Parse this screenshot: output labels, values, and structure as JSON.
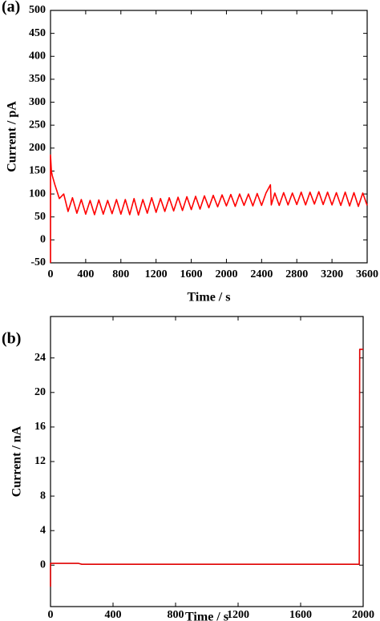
{
  "chart_data": [
    {
      "type": "line",
      "panel_label": "(a)",
      "xlabel": "Time / s",
      "ylabel": "Current / pA",
      "xlim": [
        0,
        3600
      ],
      "xticks": [
        0,
        400,
        800,
        1200,
        1600,
        2000,
        2400,
        2800,
        3200,
        3600
      ],
      "ylim": [
        -50,
        500
      ],
      "yticks": [
        -50,
        0,
        50,
        100,
        150,
        200,
        250,
        300,
        350,
        400,
        450,
        500
      ],
      "series": [
        {
          "color": "#ff0000",
          "x": [
            0,
            0,
            10,
            20,
            50,
            100,
            150,
            200,
            250,
            300,
            350,
            400,
            450,
            500,
            550,
            600,
            650,
            700,
            750,
            800,
            850,
            900,
            950,
            1000,
            1050,
            1100,
            1150,
            1200,
            1250,
            1300,
            1350,
            1400,
            1450,
            1500,
            1550,
            1600,
            1650,
            1700,
            1750,
            1800,
            1850,
            1900,
            1950,
            2000,
            2050,
            2100,
            2150,
            2200,
            2250,
            2300,
            2350,
            2400,
            2450,
            2500,
            2510,
            2550,
            2600,
            2650,
            2700,
            2750,
            2800,
            2850,
            2900,
            2950,
            3000,
            3050,
            3100,
            3150,
            3200,
            3250,
            3300,
            3350,
            3400,
            3450,
            3500,
            3550,
            3600
          ],
          "values": [
            -50,
            185,
            150,
            140,
            120,
            90,
            100,
            62,
            92,
            58,
            88,
            56,
            86,
            55,
            87,
            56,
            86,
            57,
            88,
            56,
            88,
            55,
            90,
            54,
            88,
            58,
            92,
            60,
            90,
            62,
            92,
            63,
            93,
            64,
            94,
            66,
            95,
            67,
            96,
            70,
            97,
            72,
            98,
            74,
            99,
            73,
            100,
            75,
            100,
            74,
            101,
            75,
            102,
            120,
            76,
            102,
            75,
            103,
            76,
            102,
            77,
            104,
            76,
            104,
            78,
            105,
            77,
            104,
            76,
            103,
            75,
            104,
            74,
            103,
            73,
            102,
            75
          ]
        }
      ]
    },
    {
      "type": "line",
      "panel_label": "(b)",
      "xlabel": "Time / s",
      "ylabel": "Current / nA",
      "xlim": [
        0,
        2000
      ],
      "xticks": [
        0,
        400,
        800,
        1200,
        1600,
        2000
      ],
      "ylim": [
        -4.8,
        28.8
      ],
      "yticks": [
        0,
        4,
        8,
        12,
        16,
        20,
        24
      ],
      "series": [
        {
          "color": "#e00000",
          "x": [
            0,
            0,
            180,
            200,
            1975,
            1978,
            1985,
            2000
          ],
          "values": [
            -2.5,
            0.2,
            0.2,
            0.1,
            0.1,
            25,
            25,
            25
          ]
        }
      ]
    }
  ]
}
